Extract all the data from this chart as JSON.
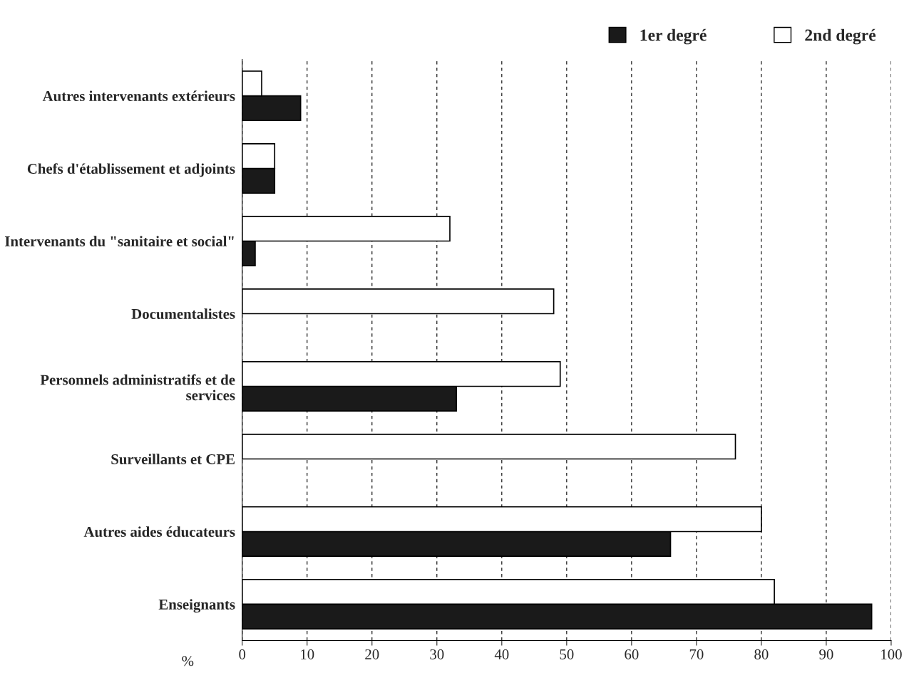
{
  "chart_data": {
    "type": "bar",
    "orientation": "horizontal",
    "xlabel": "%",
    "categories": [
      "Autres intervenants extérieurs",
      "Chefs d'établissement et adjoints",
      "Intervenants du \"sanitaire et social\"",
      "Documentalistes",
      "Personnels administratifs et de services",
      "Surveillants et CPE",
      "Autres aides éducateurs",
      "Enseignants"
    ],
    "series": [
      {
        "name": "1er degré",
        "color": "#1a1a1a",
        "values": [
          9,
          5,
          2,
          null,
          33,
          null,
          66,
          97
        ]
      },
      {
        "name": "2nd degré",
        "color": "#ffffff",
        "values": [
          3,
          5,
          32,
          48,
          49,
          76,
          80,
          82
        ]
      }
    ],
    "xlim": [
      0,
      100
    ],
    "xticks": [
      0,
      10,
      20,
      30,
      40,
      50,
      60,
      70,
      80,
      90,
      100
    ],
    "grid": "x",
    "legend": "top right"
  }
}
